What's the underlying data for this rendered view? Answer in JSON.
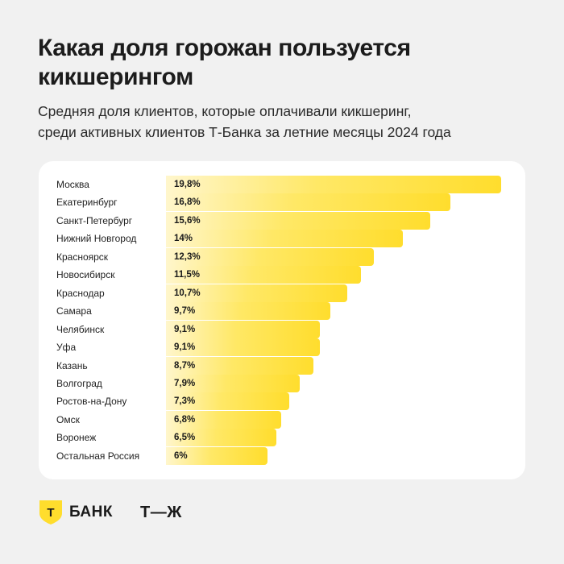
{
  "header": {
    "title": "Какая доля горожан пользуется кикшерингом",
    "subtitle_line1": "Средняя доля клиентов, которые оплачивали кикшеринг,",
    "subtitle_line2": "среди активных клиентов Т-Банка за летние месяцы 2024 года"
  },
  "chart_data": {
    "type": "bar",
    "orientation": "horizontal",
    "title": "Какая доля горожан пользуется кикшерингом",
    "subtitle": "Средняя доля клиентов, которые оплачивали кикшеринг, среди активных клиентов Т-Банка за летние месяцы 2024 года",
    "unit": "%",
    "xlim": [
      0,
      19.8
    ],
    "categories": [
      "Москва",
      "Екатеринбург",
      "Санкт-Петербург",
      "Нижний Новгород",
      "Красноярск",
      "Новосибирск",
      "Краснодар",
      "Самара",
      "Челябинск",
      "Уфа",
      "Казань",
      "Волгоград",
      "Ростов-на-Дону",
      "Омск",
      "Воронеж",
      "Остальная Россия"
    ],
    "values": [
      19.8,
      16.8,
      15.6,
      14,
      12.3,
      11.5,
      10.7,
      9.7,
      9.1,
      9.1,
      8.7,
      7.9,
      7.3,
      6.8,
      6.5,
      6
    ],
    "value_labels": [
      "19,8%",
      "16,8%",
      "15,6%",
      "14%",
      "12,3%",
      "11,5%",
      "10,7%",
      "9,7%",
      "9,1%",
      "9,1%",
      "8,7%",
      "7,9%",
      "7,3%",
      "6,8%",
      "6,5%",
      "6%"
    ],
    "bar_color": "#ffdd2d",
    "bar_color_light": "#fff6cc"
  },
  "footer": {
    "bank_logo_letter": "Т",
    "bank_name": "БАНК",
    "tj_logo": "Т—Ж",
    "shield_color": "#ffdd2d"
  }
}
